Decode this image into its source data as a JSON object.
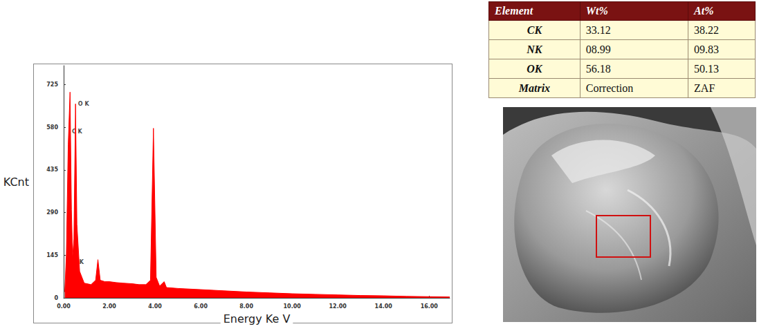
{
  "chart_data": {
    "type": "area",
    "color": "#ff0000",
    "xlabel": "Energy Ke V",
    "ylabel": "KCnt",
    "grid": false,
    "xlim": [
      0,
      16.9
    ],
    "xticks": [
      {
        "value": 0,
        "label": "0.00"
      },
      {
        "value": 2,
        "label": "2.00"
      },
      {
        "value": 4,
        "label": "4.00"
      },
      {
        "value": 6,
        "label": "6.00"
      },
      {
        "value": 8,
        "label": "8.00"
      },
      {
        "value": 10,
        "label": "10.00"
      },
      {
        "value": 12,
        "label": "12.00"
      },
      {
        "value": 14,
        "label": "14.00"
      },
      {
        "value": 16,
        "label": "16.00"
      }
    ],
    "ylim": [
      0,
      790
    ],
    "yticks": [
      0,
      145,
      290,
      435,
      580,
      725
    ],
    "x": [
      0.05,
      0.12,
      0.2,
      0.28,
      0.34,
      0.39,
      0.45,
      0.52,
      0.58,
      0.7,
      0.9,
      1.2,
      1.4,
      1.5,
      1.6,
      1.8,
      2.0,
      2.3,
      2.6,
      3.0,
      3.3,
      3.6,
      3.8,
      3.93,
      4.05,
      4.2,
      4.4,
      4.5,
      5.0,
      6.0,
      7.0,
      8.0,
      9.0,
      10.0,
      11.0,
      12.0,
      13.0,
      14.0,
      15.0,
      16.0,
      16.9
    ],
    "values": [
      20,
      150,
      520,
      700,
      300,
      140,
      200,
      660,
      250,
      90,
      50,
      45,
      60,
      130,
      60,
      55,
      55,
      52,
      50,
      48,
      45,
      45,
      60,
      577,
      70,
      40,
      55,
      35,
      32,
      28,
      24,
      20,
      17,
      14,
      12,
      10,
      8,
      7,
      5,
      4,
      3
    ],
    "annotations": [
      {
        "text": "O K",
        "x": 0.6,
        "y": 660
      },
      {
        "text": "C K",
        "x": 0.33,
        "y": 565
      },
      {
        "text": "N K",
        "x": 0.37,
        "y": 120
      }
    ]
  },
  "table": {
    "header": [
      "Element",
      "Wt%",
      "At%"
    ],
    "rows": [
      [
        "CK",
        "33.12",
        "38.22"
      ],
      [
        "NK",
        "08.99",
        "09.83"
      ],
      [
        "OK",
        "56.18",
        "50.13"
      ],
      [
        "Matrix",
        "Correction",
        "ZAF"
      ]
    ]
  }
}
